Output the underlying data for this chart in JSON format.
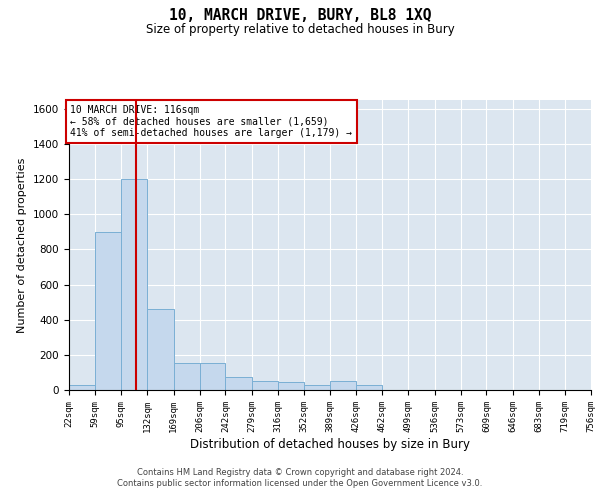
{
  "title": "10, MARCH DRIVE, BURY, BL8 1XQ",
  "subtitle": "Size of property relative to detached houses in Bury",
  "xlabel": "Distribution of detached houses by size in Bury",
  "ylabel": "Number of detached properties",
  "footer_line1": "Contains HM Land Registry data © Crown copyright and database right 2024.",
  "footer_line2": "Contains public sector information licensed under the Open Government Licence v3.0.",
  "bar_color": "#c5d8ed",
  "bar_edge_color": "#7aafd4",
  "bg_color": "#dce6f0",
  "grid_color": "#ffffff",
  "annotation_text_line1": "10 MARCH DRIVE: 116sqm",
  "annotation_text_line2": "← 58% of detached houses are smaller (1,659)",
  "annotation_text_line3": "41% of semi-detached houses are larger (1,179) →",
  "annotation_box_color": "#cc0000",
  "vline_color": "#cc0000",
  "vline_x": 116,
  "ylim": [
    0,
    1650
  ],
  "yticks": [
    0,
    200,
    400,
    600,
    800,
    1000,
    1200,
    1400,
    1600
  ],
  "bin_edges": [
    22,
    59,
    95,
    132,
    169,
    206,
    242,
    279,
    316,
    352,
    389,
    426,
    462,
    499,
    536,
    573,
    609,
    646,
    683,
    719,
    756
  ],
  "bar_heights": [
    28,
    900,
    1200,
    460,
    155,
    155,
    75,
    50,
    45,
    28,
    50,
    28,
    0,
    0,
    0,
    0,
    0,
    0,
    0,
    0
  ]
}
